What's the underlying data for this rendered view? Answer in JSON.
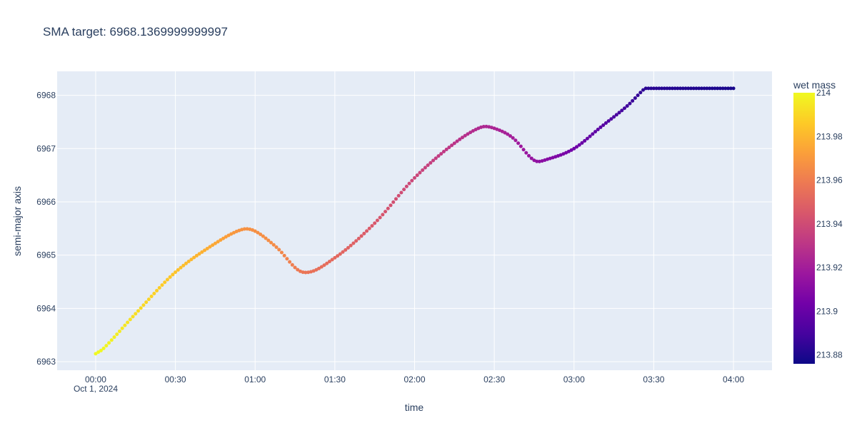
{
  "chart_data": {
    "type": "scatter",
    "title": "SMA target: 6968.1369999999997",
    "xlabel": "time",
    "ylabel": "semi-major axis",
    "x_ticks": [
      {
        "value": 0,
        "label": "00:00"
      },
      {
        "value": 30,
        "label": "00:30"
      },
      {
        "value": 60,
        "label": "01:00"
      },
      {
        "value": 90,
        "label": "01:30"
      },
      {
        "value": 120,
        "label": "02:00"
      },
      {
        "value": 150,
        "label": "02:30"
      },
      {
        "value": 180,
        "label": "03:00"
      },
      {
        "value": 210,
        "label": "03:30"
      },
      {
        "value": 240,
        "label": "04:00"
      }
    ],
    "x_date_label": "Oct 1, 2024",
    "x_unit": "minutes",
    "xlim": [
      -14.5,
      254.5
    ],
    "y_ticks": [
      6963,
      6964,
      6965,
      6966,
      6967,
      6968
    ],
    "ylim": [
      6962.84,
      6968.45
    ],
    "colorbar": {
      "title": "wet mass",
      "range": [
        213.876,
        214.0
      ],
      "ticks": [
        "214",
        "213.98",
        "213.96",
        "213.94",
        "213.92",
        "213.9",
        "213.88"
      ],
      "tick_values": [
        214.0,
        213.98,
        213.96,
        213.94,
        213.92,
        213.9,
        213.88
      ],
      "colorscale": [
        "#0d0887",
        "#46039f",
        "#7201a8",
        "#9c179e",
        "#bd3786",
        "#d8576b",
        "#ed7953",
        "#fb9f3a",
        "#fdca26",
        "#f0f921"
      ]
    },
    "grid": true,
    "marker_size": 5,
    "key_points": [
      {
        "x": 0,
        "y": 6963.15,
        "mass": 214.0
      },
      {
        "x": 3,
        "y": 6963.25,
        "mass": 213.9995
      },
      {
        "x": 15,
        "y": 6963.9,
        "mass": 213.992
      },
      {
        "x": 30,
        "y": 6964.68,
        "mass": 213.984
      },
      {
        "x": 45,
        "y": 6965.22,
        "mass": 213.975
      },
      {
        "x": 55,
        "y": 6965.48,
        "mass": 213.968
      },
      {
        "x": 60,
        "y": 6965.45,
        "mass": 213.967
      },
      {
        "x": 68,
        "y": 6965.15,
        "mass": 213.965
      },
      {
        "x": 78,
        "y": 6964.68,
        "mass": 213.9575
      },
      {
        "x": 90,
        "y": 6964.95,
        "mass": 213.952
      },
      {
        "x": 105,
        "y": 6965.6,
        "mass": 213.945
      },
      {
        "x": 120,
        "y": 6966.45,
        "mass": 213.938
      },
      {
        "x": 135,
        "y": 6967.1,
        "mass": 213.93
      },
      {
        "x": 145,
        "y": 6967.4,
        "mass": 213.925
      },
      {
        "x": 150,
        "y": 6967.38,
        "mass": 213.923
      },
      {
        "x": 157,
        "y": 6967.2,
        "mass": 213.92
      },
      {
        "x": 165,
        "y": 6966.78,
        "mass": 213.914
      },
      {
        "x": 170,
        "y": 6966.8,
        "mass": 213.91
      },
      {
        "x": 180,
        "y": 6967.0,
        "mass": 213.903
      },
      {
        "x": 190,
        "y": 6967.4,
        "mass": 213.896
      },
      {
        "x": 200,
        "y": 6967.8,
        "mass": 213.888
      },
      {
        "x": 206,
        "y": 6968.1,
        "mass": 213.884
      },
      {
        "x": 207,
        "y": 6968.13,
        "mass": 213.883
      },
      {
        "x": 240,
        "y": 6968.13,
        "mass": 213.879
      }
    ],
    "points_per_minute": 1
  }
}
